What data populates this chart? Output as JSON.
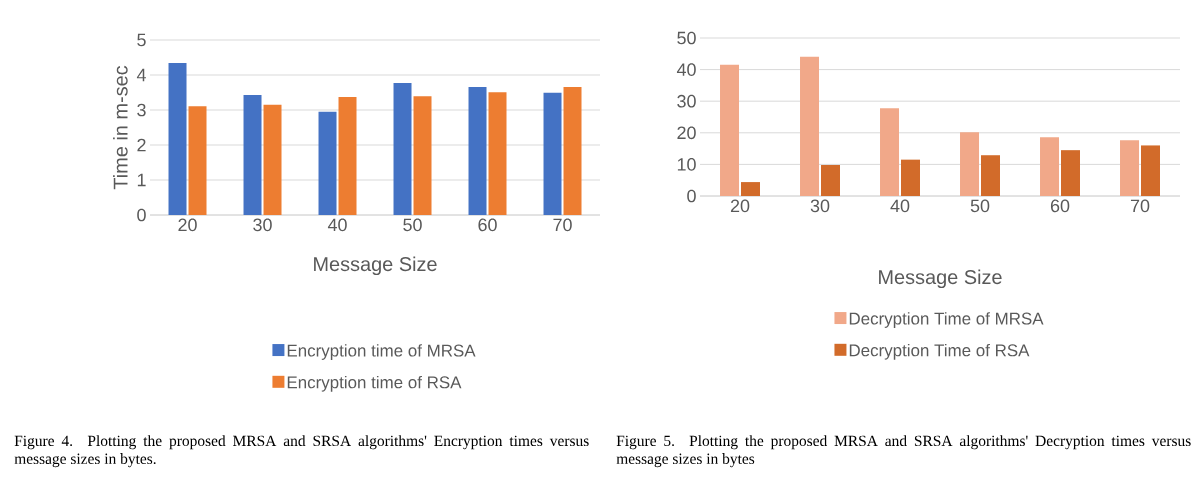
{
  "chart_data": [
    {
      "type": "bar",
      "xlabel": "Message Size",
      "ylabel": "Time in m-sec",
      "categories": [
        "20",
        "30",
        "40",
        "50",
        "60",
        "70"
      ],
      "series": [
        {
          "name": "Encryption time of MRSA",
          "color": "#4472c4",
          "values": [
            4.34,
            3.43,
            2.95,
            3.77,
            3.66,
            3.49
          ]
        },
        {
          "name": "Encryption time of RSA",
          "color": "#ed7d31",
          "values": [
            3.11,
            3.15,
            3.37,
            3.39,
            3.51,
            3.66
          ]
        }
      ],
      "ylim": [
        0,
        5
      ],
      "yticks": [
        0,
        1,
        2,
        3,
        4,
        5
      ],
      "grid": "y",
      "legend": "bottom",
      "annotations": [
        "Figure 4. Plotting the proposed MRSA and SRSA algorithms' Encryption times versus message sizes in bytes."
      ]
    },
    {
      "type": "bar",
      "xlabel": "Message Size",
      "categories": [
        "20",
        "30",
        "40",
        "50",
        "60",
        "70"
      ],
      "series": [
        {
          "name": "Decryption Time of MRSA",
          "color": "#f1a889",
          "values": [
            41.5,
            44.1,
            27.8,
            20.2,
            18.6,
            17.6
          ]
        },
        {
          "name": "Decryption Time of RSA",
          "color": "#d26b2a",
          "values": [
            4.4,
            9.8,
            11.5,
            12.9,
            14.5,
            16.0
          ]
        }
      ],
      "ylim": [
        0,
        50
      ],
      "yticks": [
        0,
        10,
        20,
        30,
        40,
        50
      ],
      "grid": "y",
      "legend": "bottom",
      "annotations": [
        "Figure 5. Plotting the proposed MRSA and SRSA algorithms' Decryption times versus message sizes in bytes"
      ]
    }
  ]
}
